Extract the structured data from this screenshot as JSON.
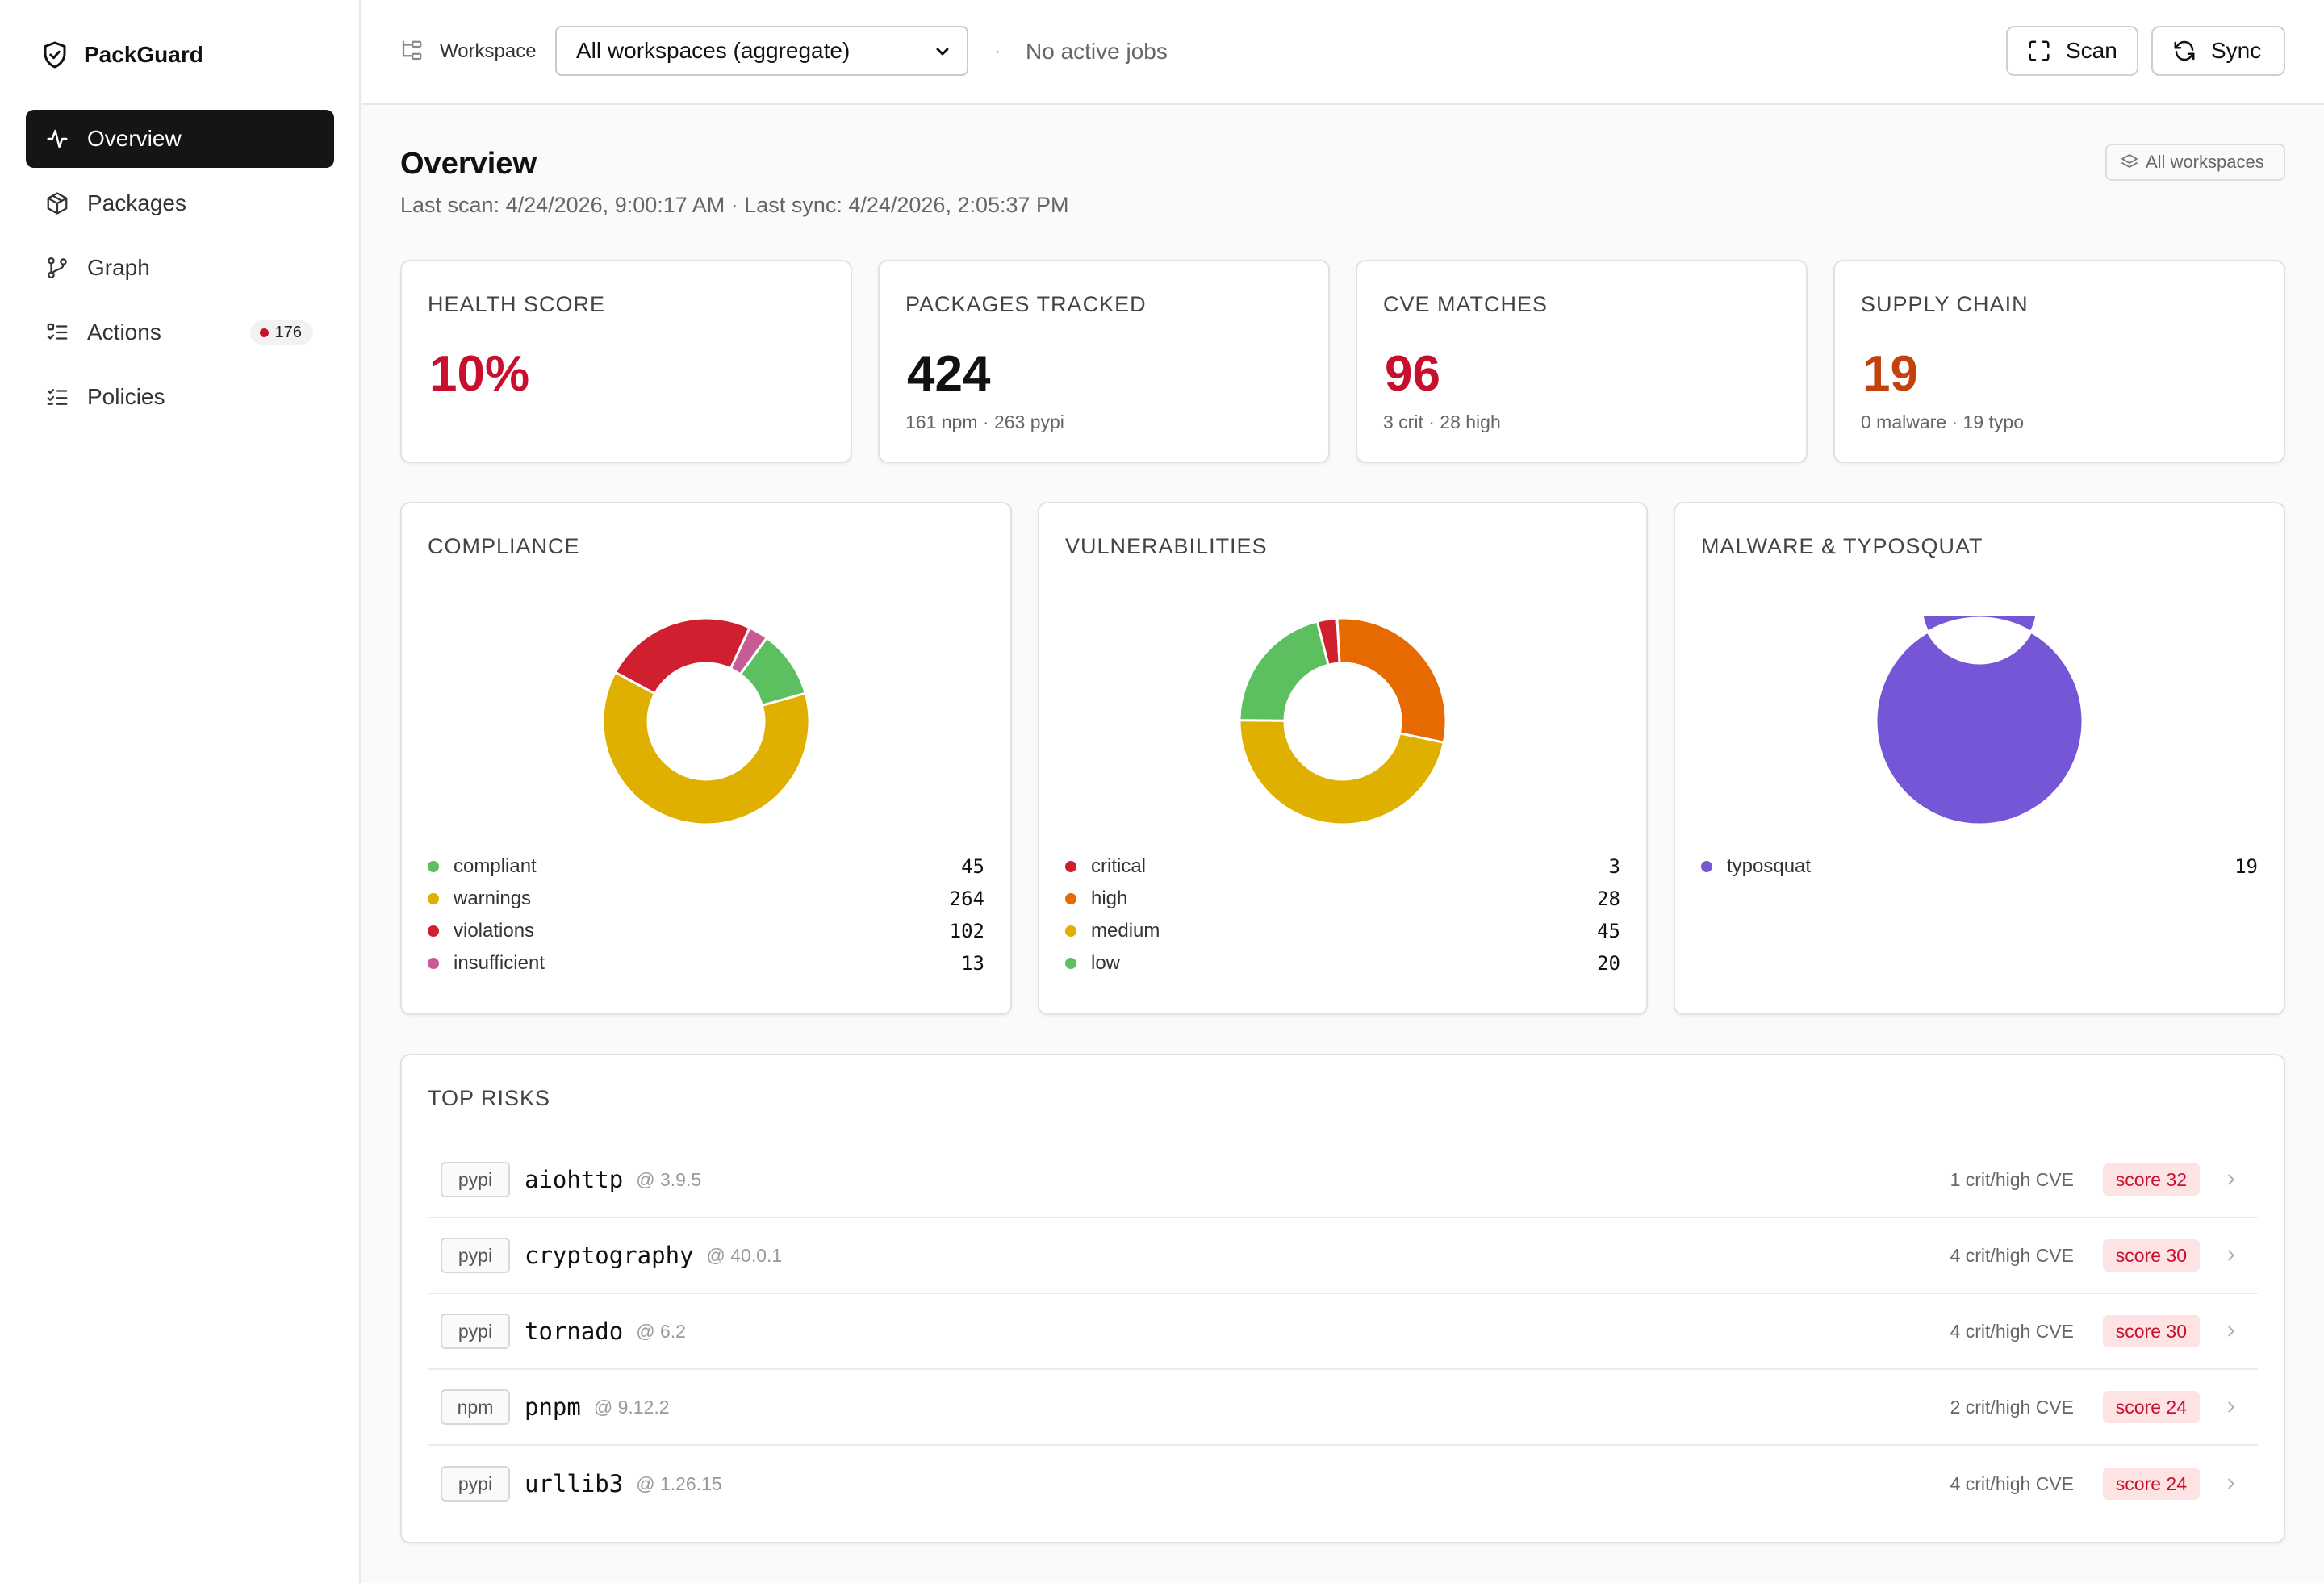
{
  "app": {
    "name": "PackGuard"
  },
  "sidebar": {
    "items": [
      {
        "label": "Overview",
        "icon": "activity-icon",
        "active": true
      },
      {
        "label": "Packages",
        "icon": "package-icon"
      },
      {
        "label": "Graph",
        "icon": "git-branch-icon"
      },
      {
        "label": "Actions",
        "icon": "list-todo-icon",
        "badge": "176"
      },
      {
        "label": "Policies",
        "icon": "list-checks-icon"
      }
    ]
  },
  "topbar": {
    "workspace_label": "Workspace",
    "workspace_value": "All workspaces (aggregate)",
    "separator": "·",
    "jobs_status": "No active jobs",
    "scan_label": "Scan",
    "sync_label": "Sync"
  },
  "header": {
    "title": "Overview",
    "subtitle": "Last scan: 4/24/2026, 9:00:17 AM · Last sync: 4/24/2026, 2:05:37 PM",
    "scope_label": "All workspaces"
  },
  "stats": {
    "health": {
      "title": "HEALTH SCORE",
      "value": "10%",
      "color": "#c8102e"
    },
    "packages": {
      "title": "PACKAGES TRACKED",
      "value": "424",
      "sub": "161 npm · 263 pypi",
      "color": "#111111"
    },
    "cves": {
      "title": "CVE MATCHES",
      "value": "96",
      "sub": "3 crit · 28 high",
      "color": "#c8102e"
    },
    "supply": {
      "title": "SUPPLY CHAIN",
      "value": "19",
      "sub": "0 malware · 19 typo",
      "color": "#c2410c"
    }
  },
  "charts": {
    "compliance": {
      "title": "COMPLIANCE",
      "items": [
        {
          "label": "compliant",
          "value": "45",
          "color": "#5cbf60"
        },
        {
          "label": "warnings",
          "value": "264",
          "color": "#e0b000"
        },
        {
          "label": "violations",
          "value": "102",
          "color": "#d01f2f"
        },
        {
          "label": "insufficient",
          "value": "13",
          "color": "#c75b94"
        }
      ]
    },
    "vulnerabilities": {
      "title": "VULNERABILITIES",
      "items": [
        {
          "label": "critical",
          "value": "3",
          "color": "#d01f2f"
        },
        {
          "label": "high",
          "value": "28",
          "color": "#e66a00"
        },
        {
          "label": "medium",
          "value": "45",
          "color": "#e0b000"
        },
        {
          "label": "low",
          "value": "20",
          "color": "#5cbf60"
        }
      ]
    },
    "malware": {
      "title": "MALWARE & TYPOSQUAT",
      "items": [
        {
          "label": "typosquat",
          "value": "19",
          "color": "#7556d6"
        }
      ]
    }
  },
  "risks": {
    "title": "TOP RISKS",
    "rows": [
      {
        "eco": "pypi",
        "name": "aiohttp",
        "version": "@ 3.9.5",
        "cve": "1 crit/high CVE",
        "score": "score 32"
      },
      {
        "eco": "pypi",
        "name": "cryptography",
        "version": "@ 40.0.1",
        "cve": "4 crit/high CVE",
        "score": "score 30"
      },
      {
        "eco": "pypi",
        "name": "tornado",
        "version": "@ 6.2",
        "cve": "4 crit/high CVE",
        "score": "score 30"
      },
      {
        "eco": "npm",
        "name": "pnpm",
        "version": "@ 9.12.2",
        "cve": "2 crit/high CVE",
        "score": "score 24"
      },
      {
        "eco": "pypi",
        "name": "urllib3",
        "version": "@ 1.26.15",
        "cve": "4 crit/high CVE",
        "score": "score 24"
      }
    ]
  }
}
